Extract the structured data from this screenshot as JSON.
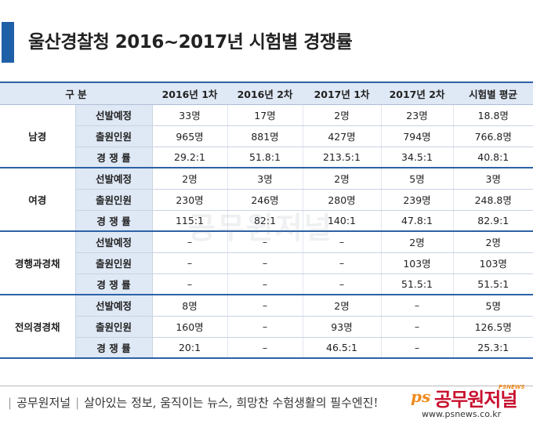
{
  "title": "울산경찰청 2016~2017년 시험별 경쟁률",
  "table": {
    "headers": [
      "구 분",
      "2016년 1차",
      "2016년 2차",
      "2017년 1차",
      "2017년 2차",
      "시험별 평균"
    ],
    "groups": [
      {
        "name": "남경",
        "rows": [
          {
            "label": "선발예정",
            "values": [
              "33명",
              "17명",
              "2명",
              "23명",
              "18.8명"
            ]
          },
          {
            "label": "출원인원",
            "values": [
              "965명",
              "881명",
              "427명",
              "794명",
              "766.8명"
            ]
          },
          {
            "label": "경 쟁 률",
            "values": [
              "29.2:1",
              "51.8:1",
              "213.5:1",
              "34.5:1",
              "40.8:1"
            ]
          }
        ]
      },
      {
        "name": "여경",
        "rows": [
          {
            "label": "선발예정",
            "values": [
              "2명",
              "3명",
              "2명",
              "5명",
              "3명"
            ]
          },
          {
            "label": "출원인원",
            "values": [
              "230명",
              "246명",
              "280명",
              "239명",
              "248.8명"
            ]
          },
          {
            "label": "경 쟁 률",
            "values": [
              "115:1",
              "82:1",
              "140:1",
              "47.8:1",
              "82.9:1"
            ]
          }
        ]
      },
      {
        "name": "경행과경채",
        "rows": [
          {
            "label": "선발예정",
            "values": [
              "–",
              "–",
              "–",
              "2명",
              "2명"
            ]
          },
          {
            "label": "출원인원",
            "values": [
              "–",
              "–",
              "–",
              "103명",
              "103명"
            ]
          },
          {
            "label": "경 쟁 률",
            "values": [
              "–",
              "–",
              "–",
              "51.5:1",
              "51.5:1"
            ]
          }
        ]
      },
      {
        "name": "전의경경채",
        "rows": [
          {
            "label": "선발예정",
            "values": [
              "8명",
              "–",
              "2명",
              "–",
              "5명"
            ]
          },
          {
            "label": "출원인원",
            "values": [
              "160명",
              "–",
              "93명",
              "–",
              "126.5명"
            ]
          },
          {
            "label": "경 쟁 률",
            "values": [
              "20:1",
              "–",
              "46.5:1",
              "–",
              "25.3:1"
            ]
          }
        ]
      }
    ]
  },
  "footer": {
    "brand": "공무원저널",
    "slogan": "살아있는 정보, 움직이는 뉴스, 희망찬 수험생활의 필수엔진!",
    "logo_ps": "ps",
    "logo_name": "공무원저널",
    "logo_news": "PSNEWS",
    "url": "www.psnews.co.kr"
  },
  "watermark": "공무원저널",
  "colors": {
    "accent": "#1f5fa8",
    "header_bg": "#dfe8f5",
    "logo_red": "#c8102e",
    "logo_orange": "#f08a1c"
  }
}
